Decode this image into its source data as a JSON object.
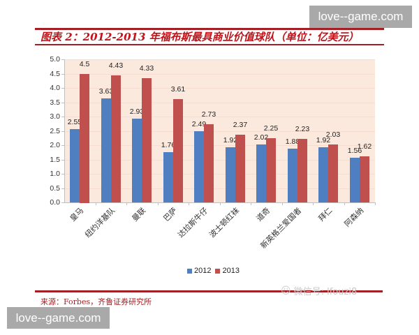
{
  "watermarks": {
    "top_right": "love--game.com",
    "bottom_left": "love--game.com"
  },
  "header": {
    "title": "图表 2：2012-2013 年福布斯最具商业价值球队（单位：亿美元）"
  },
  "footer": {
    "source": "来源：Forbes，齐鲁证券研究所",
    "wechat_label": "微信号: lfouzi8"
  },
  "legend": {
    "items": [
      {
        "label": "2012",
        "color": "#4f7fc0"
      },
      {
        "label": "2013",
        "color": "#c0504d"
      }
    ]
  },
  "axis": {
    "y_ticks": [
      "0.0",
      "0.5",
      "1.0",
      "1.5",
      "2.0",
      "2.5",
      "3.0",
      "3.5",
      "4.0",
      "4.5",
      "5.0"
    ]
  },
  "chart_data": {
    "type": "bar",
    "title": "图表 2：2012-2013 年福布斯最具商业价值球队（单位：亿美元）",
    "xlabel": "",
    "ylabel": "亿美元",
    "ylim": [
      0,
      5.0
    ],
    "y_ticks": [
      0.0,
      0.5,
      1.0,
      1.5,
      2.0,
      2.5,
      3.0,
      3.5,
      4.0,
      4.5,
      5.0
    ],
    "grid": true,
    "legend_position": "bottom",
    "categories": [
      "皇马",
      "纽约洋基队",
      "曼联",
      "巴萨",
      "达拉斯牛仔",
      "波士顿红袜",
      "道奇",
      "新英格兰爱国者",
      "拜仁",
      "阿森纳"
    ],
    "series": [
      {
        "name": "2012",
        "color": "#4f7fc0",
        "values": [
          2.55,
          3.63,
          2.93,
          1.76,
          2.49,
          1.92,
          2.02,
          1.88,
          1.92,
          1.56
        ]
      },
      {
        "name": "2013",
        "color": "#c0504d",
        "values": [
          4.5,
          4.43,
          4.33,
          3.61,
          2.73,
          2.37,
          2.25,
          2.23,
          2.03,
          1.62
        ]
      }
    ],
    "data_labels": {
      "2012": [
        "2.55",
        "3.63",
        "2.93",
        "1.76",
        "2.49",
        "1.92",
        "2.02",
        "1.88",
        "1.92",
        "1.56"
      ],
      "2013": [
        "4.5",
        "4.43",
        "4.33",
        "3.61",
        "2.73",
        "2.37",
        "2.25",
        "2.23",
        "2.03",
        "1.62"
      ]
    },
    "source": "来源：Forbes，齐鲁证券研究所"
  }
}
